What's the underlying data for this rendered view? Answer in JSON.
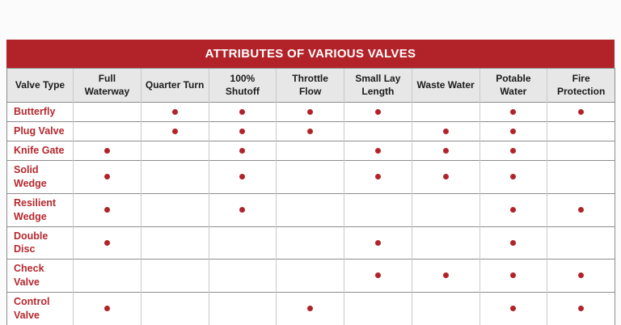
{
  "page": {
    "background": "#fbfbfb"
  },
  "colors": {
    "title_bg": "#b22329",
    "title_text": "#ffffff",
    "header_bg": "#e7e7e7",
    "header_text": "#1b1b1b",
    "row_label_text": "#b4282e",
    "dot": "#b22329",
    "grid_horizontal": "#8d8d8d",
    "grid_vertical": "#c9c9c9"
  },
  "icons": {
    "present_marker": "dot-icon"
  },
  "chart_data": {
    "type": "table",
    "title": "ATTRIBUTES OF VARIOUS VALVES",
    "columns": [
      "Valve Type",
      "Full Waterway",
      "Quarter Turn",
      "100% Shutoff",
      "Throttle Flow",
      "Small Lay Length",
      "Waste Water",
      "Potable Water",
      "Fire Protection"
    ],
    "marker_meaning": "dot = valve has this attribute",
    "rows": [
      {
        "label": "Butterfly",
        "attributes": [
          0,
          1,
          1,
          1,
          1,
          0,
          1,
          1
        ]
      },
      {
        "label": "Plug Valve",
        "attributes": [
          0,
          1,
          1,
          1,
          0,
          1,
          1,
          0
        ]
      },
      {
        "label": "Knife Gate",
        "attributes": [
          1,
          0,
          1,
          0,
          1,
          1,
          1,
          0
        ]
      },
      {
        "label": "Solid Wedge",
        "attributes": [
          1,
          0,
          1,
          0,
          1,
          1,
          1,
          0
        ]
      },
      {
        "label": "Resilient Wedge",
        "attributes": [
          1,
          0,
          1,
          0,
          0,
          0,
          1,
          1
        ]
      },
      {
        "label": "Double Disc",
        "attributes": [
          1,
          0,
          0,
          0,
          1,
          0,
          1,
          0
        ]
      },
      {
        "label": "Check Valve",
        "attributes": [
          0,
          0,
          0,
          0,
          1,
          1,
          1,
          1
        ]
      },
      {
        "label": "Control Valve",
        "attributes": [
          1,
          0,
          0,
          1,
          0,
          0,
          1,
          1
        ]
      }
    ]
  }
}
